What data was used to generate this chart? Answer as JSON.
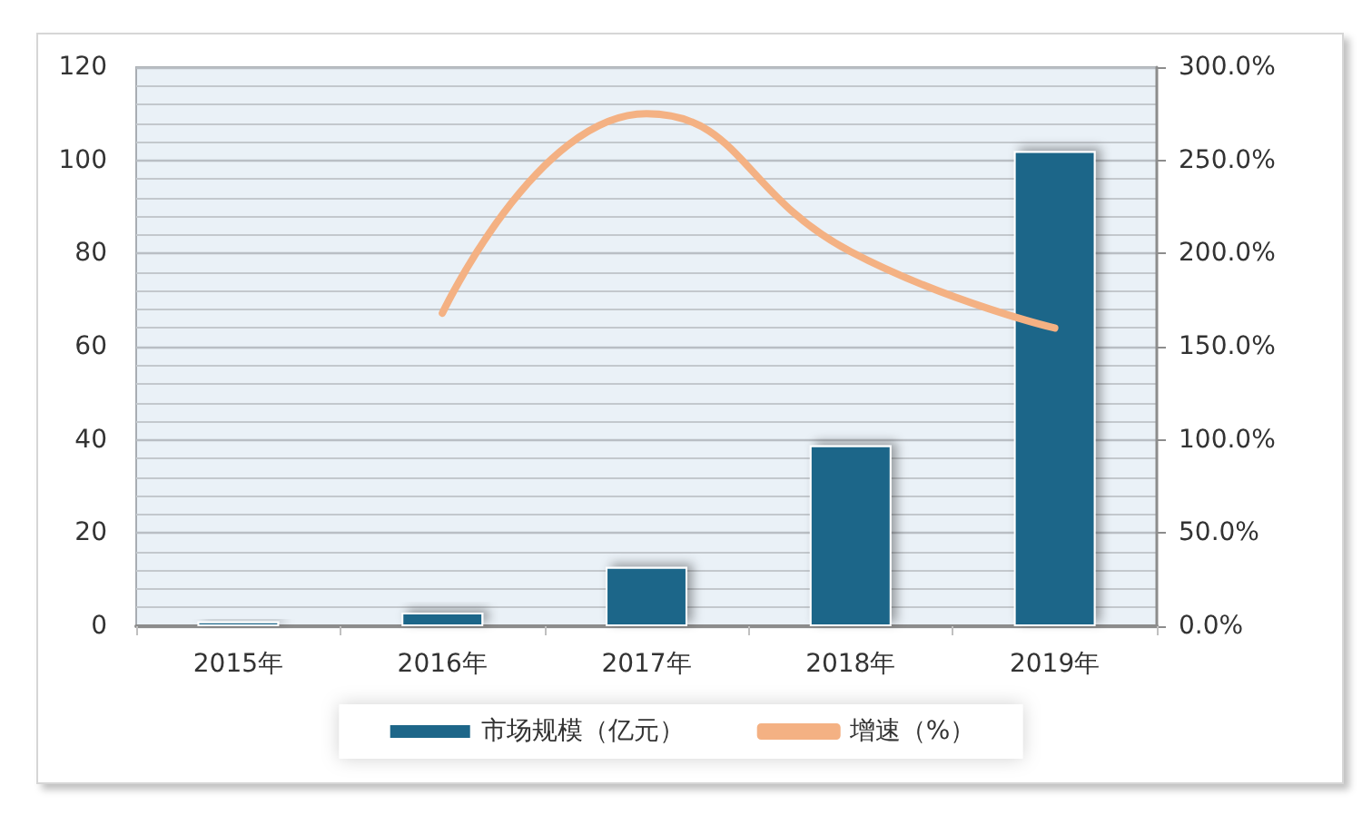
{
  "chart_data": {
    "type": "bar",
    "categories": [
      "2015年",
      "2016年",
      "2017年",
      "2018年",
      "2019年"
    ],
    "series": [
      {
        "name": "市场规模（亿元）",
        "color": "#1d6689",
        "values": [
          1.0,
          2.9,
          12.7,
          38.8,
          102.0
        ]
      },
      {
        "name": "增速（%）",
        "type": "line",
        "axis": "y2",
        "color": "#f4b183",
        "values": [
          null,
          168,
          275,
          201,
          160
        ]
      }
    ],
    "ylim": [
      0,
      120
    ],
    "yticks": [
      0,
      20,
      40,
      60,
      80,
      100,
      120
    ],
    "y2lim": [
      0,
      300
    ],
    "y2ticks": [
      {
        "value": 0,
        "label": "0.0%"
      },
      {
        "value": 50,
        "label": "50.0%"
      },
      {
        "value": 100,
        "label": "100.0%"
      },
      {
        "value": 150,
        "label": "150.0%"
      },
      {
        "value": 200,
        "label": "200.0%"
      },
      {
        "value": 250,
        "label": "250.0%"
      },
      {
        "value": 300,
        "label": "300.0%"
      }
    ],
    "grid": "y",
    "legend": "bottom",
    "marker": "none",
    "line_style": "solid"
  }
}
